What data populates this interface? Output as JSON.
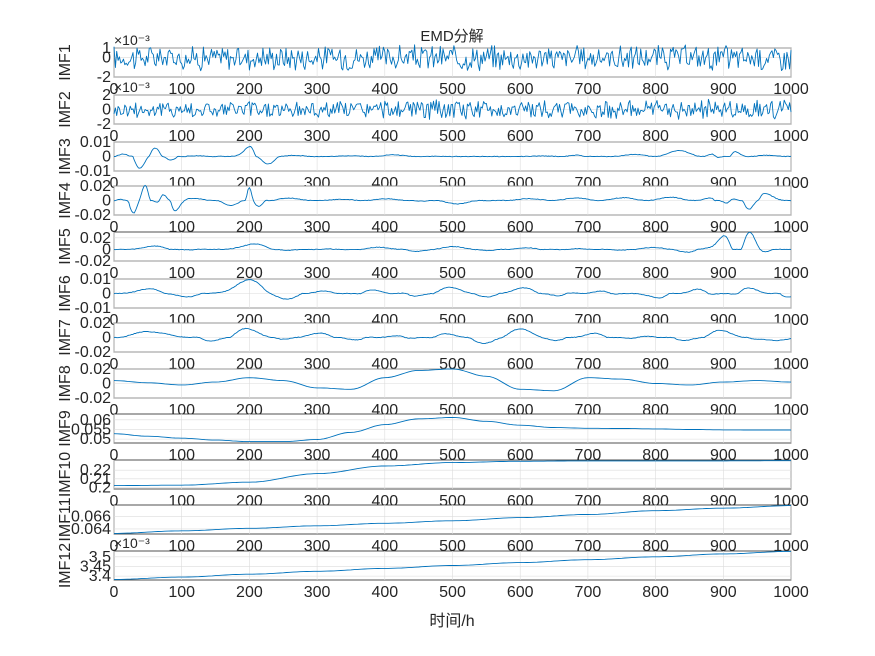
{
  "figure": {
    "title": "EMD分解",
    "xlabel": "时间/h"
  },
  "chart_data": [
    {
      "type": "line",
      "ylabel": "IMF1",
      "xlim": [
        0,
        1000
      ],
      "ylim": [
        -2,
        1
      ],
      "yticks": [
        "-2",
        "0",
        "1"
      ],
      "ytick_values": [
        -2,
        0,
        1
      ],
      "exponent": "×10⁻³",
      "xticks": [
        0,
        100,
        200,
        300,
        400,
        500,
        600,
        700,
        800,
        900,
        1000
      ],
      "x": [
        0,
        50,
        100,
        150,
        200,
        250,
        300,
        350,
        400,
        450,
        500,
        550,
        600,
        650,
        700,
        750,
        800,
        850,
        900,
        950,
        1000
      ],
      "y": [
        0.3,
        -0.8,
        0.9,
        -1.2,
        1.0,
        -0.7,
        0.8,
        -1.5,
        1.1,
        -0.9,
        0.7,
        -1.1,
        0.9,
        -0.6,
        1.0,
        -1.3,
        0.8,
        -0.9,
        1.0,
        -1.0,
        0.2
      ],
      "style": "noise"
    },
    {
      "type": "line",
      "ylabel": "IMF2",
      "xlim": [
        0,
        1000
      ],
      "ylim": [
        -2,
        2
      ],
      "yticks": [
        "-2",
        "0",
        "2"
      ],
      "ytick_values": [
        -2,
        0,
        2
      ],
      "exponent": "×10⁻³",
      "xticks": [
        0,
        100,
        200,
        300,
        400,
        500,
        600,
        700,
        800,
        900,
        1000
      ],
      "x": [
        0,
        50,
        100,
        150,
        200,
        250,
        300,
        350,
        400,
        450,
        500,
        550,
        600,
        650,
        700,
        750,
        800,
        850,
        900,
        950,
        1000
      ],
      "y": [
        0.5,
        -1.2,
        1.4,
        -1.3,
        1.5,
        -1.1,
        1.2,
        -1.4,
        1.3,
        -1.0,
        1.4,
        -1.2,
        1.3,
        -1.1,
        1.2,
        -1.3,
        1.4,
        -1.2,
        1.5,
        -1.4,
        0.4
      ],
      "style": "noise"
    },
    {
      "type": "line",
      "ylabel": "IMF3",
      "xlim": [
        0,
        1000
      ],
      "ylim": [
        -0.01,
        0.01
      ],
      "yticks": [
        "-0.01",
        "0",
        "0.01"
      ],
      "ytick_values": [
        -0.01,
        0,
        0.01
      ],
      "xticks": [
        0,
        100,
        200,
        300,
        400,
        500,
        600,
        700,
        800,
        900,
        1000
      ],
      "x": [
        0,
        20,
        40,
        60,
        80,
        100,
        150,
        180,
        200,
        220,
        250,
        300,
        400,
        500,
        600,
        680,
        700,
        880,
        900,
        920,
        950,
        1000
      ],
      "y": [
        0,
        0.004,
        -0.008,
        0.005,
        -0.004,
        0.001,
        0,
        0.002,
        0.006,
        -0.007,
        0.001,
        0,
        0.001,
        0,
        0,
        0.001,
        0,
        0.004,
        -0.006,
        0.005,
        0.001,
        0
      ],
      "style": "burst"
    },
    {
      "type": "line",
      "ylabel": "IMF4",
      "xlim": [
        0,
        1000
      ],
      "ylim": [
        -0.02,
        0.02
      ],
      "yticks": [
        "-0.02",
        "0",
        "0.02"
      ],
      "ytick_values": [
        -0.02,
        0,
        0.02
      ],
      "xticks": [
        0,
        100,
        200,
        300,
        400,
        500,
        600,
        700,
        800,
        900,
        1000
      ],
      "x": [
        0,
        15,
        30,
        45,
        60,
        75,
        90,
        110,
        150,
        190,
        200,
        210,
        230,
        300,
        400,
        500,
        600,
        700,
        880,
        900,
        920,
        940,
        960,
        1000
      ],
      "y": [
        0,
        0.01,
        -0.018,
        0.02,
        -0.015,
        0.017,
        -0.012,
        0.003,
        0,
        -0.015,
        0.016,
        -0.012,
        0.004,
        0.001,
        0.002,
        -0.004,
        0.002,
        0.003,
        0.004,
        -0.012,
        0.01,
        -0.014,
        0.008,
        0
      ],
      "style": "burst"
    },
    {
      "type": "line",
      "ylabel": "IMF5",
      "xlim": [
        0,
        1000
      ],
      "ylim": [
        -0.02,
        0.03
      ],
      "yticks": [
        "-0.02",
        "0",
        "0.02"
      ],
      "ytick_values": [
        -0.02,
        0,
        0.02
      ],
      "xticks": [
        0,
        100,
        200,
        300,
        400,
        500,
        600,
        700,
        800,
        900,
        1000
      ],
      "x": [
        0,
        50,
        100,
        150,
        200,
        250,
        300,
        350,
        400,
        450,
        500,
        550,
        600,
        650,
        700,
        750,
        800,
        850,
        880,
        900,
        920,
        940,
        960,
        980,
        1000
      ],
      "y": [
        0,
        0.008,
        -0.003,
        0.004,
        0.01,
        -0.003,
        0.004,
        -0.002,
        0.005,
        -0.003,
        0.004,
        -0.002,
        0.005,
        -0.003,
        0.004,
        -0.002,
        0.003,
        -0.004,
        0.01,
        0.026,
        -0.01,
        0.028,
        -0.006,
        0.002,
        0
      ],
      "style": "wave"
    },
    {
      "type": "line",
      "ylabel": "IMF6",
      "xlim": [
        0,
        1000
      ],
      "ylim": [
        -0.01,
        0.01
      ],
      "yticks": [
        "-0.01",
        "0",
        "0.01"
      ],
      "ytick_values": [
        -0.01,
        0,
        0.01
      ],
      "xticks": [
        0,
        100,
        200,
        300,
        400,
        500,
        600,
        700,
        800,
        900,
        1000
      ],
      "x": [
        0,
        50,
        100,
        150,
        200,
        250,
        300,
        350,
        400,
        450,
        500,
        550,
        600,
        650,
        700,
        750,
        800,
        850,
        900,
        950,
        1000
      ],
      "y": [
        0,
        0.003,
        -0.003,
        0.002,
        0.008,
        -0.004,
        0.003,
        -0.002,
        0.008,
        -0.003,
        0.004,
        -0.002,
        0.004,
        -0.003,
        0.007,
        -0.002,
        -0.004,
        0.008,
        -0.006,
        0.009,
        -0.003
      ],
      "style": "wave"
    },
    {
      "type": "line",
      "ylabel": "IMF7",
      "xlim": [
        0,
        1000
      ],
      "ylim": [
        -0.02,
        0.02
      ],
      "yticks": [
        "-0.02",
        "0",
        "0.02"
      ],
      "ytick_values": [
        -0.02,
        0,
        0.02
      ],
      "xticks": [
        0,
        100,
        200,
        300,
        400,
        500,
        600,
        700,
        800,
        900,
        1000
      ],
      "x": [
        0,
        50,
        100,
        150,
        200,
        250,
        300,
        350,
        400,
        450,
        500,
        550,
        600,
        650,
        700,
        750,
        800,
        850,
        900,
        950,
        1000
      ],
      "y": [
        0,
        0.007,
        0.01,
        -0.008,
        0.012,
        -0.002,
        0.006,
        -0.006,
        0.01,
        -0.005,
        0.008,
        -0.008,
        0.01,
        -0.004,
        0.009,
        -0.006,
        0.008,
        -0.007,
        0.01,
        -0.002,
        -0.008
      ],
      "style": "wave"
    },
    {
      "type": "line",
      "ylabel": "IMF8",
      "xlim": [
        0,
        1000
      ],
      "ylim": [
        -0.02,
        0.02
      ],
      "yticks": [
        "-0.02",
        "0",
        "0.02"
      ],
      "ytick_values": [
        -0.02,
        0,
        0.02
      ],
      "xticks": [
        0,
        100,
        200,
        300,
        400,
        500,
        600,
        700,
        800,
        900,
        1000
      ],
      "x": [
        0,
        50,
        100,
        150,
        200,
        250,
        300,
        350,
        400,
        450,
        500,
        550,
        600,
        650,
        700,
        750,
        800,
        850,
        900,
        950,
        1000
      ],
      "y": [
        0.004,
        0.001,
        -0.002,
        0.002,
        0.008,
        0.004,
        -0.006,
        -0.008,
        0.008,
        0.018,
        0.02,
        0.01,
        -0.008,
        -0.01,
        0.008,
        0.006,
        0,
        -0.002,
        0.002,
        0.004,
        0.002
      ],
      "style": "smooth"
    },
    {
      "type": "line",
      "ylabel": "IMF9",
      "xlim": [
        0,
        1000
      ],
      "ylim": [
        0.048,
        0.063
      ],
      "yticks": [
        "0.05",
        "0.055",
        "0.06"
      ],
      "ytick_values": [
        0.05,
        0.055,
        0.06
      ],
      "xticks": [
        0,
        100,
        200,
        300,
        400,
        500,
        600,
        700,
        800,
        900,
        1000
      ],
      "x": [
        0,
        50,
        100,
        150,
        200,
        250,
        300,
        350,
        400,
        450,
        500,
        550,
        600,
        650,
        700,
        750,
        800,
        850,
        900,
        950,
        1000
      ],
      "y": [
        0.0528,
        0.0515,
        0.0505,
        0.0495,
        0.0487,
        0.0487,
        0.0498,
        0.0535,
        0.0575,
        0.0605,
        0.0612,
        0.0592,
        0.0572,
        0.056,
        0.0556,
        0.0555,
        0.0553,
        0.055,
        0.0548,
        0.0547,
        0.0547
      ],
      "style": "smooth"
    },
    {
      "type": "line",
      "ylabel": "IMF10",
      "xlim": [
        0,
        1000
      ],
      "ylim": [
        0.198,
        0.232
      ],
      "yticks": [
        "0.2",
        "0.21",
        "0.22"
      ],
      "ytick_values": [
        0.2,
        0.21,
        0.22
      ],
      "xticks": [
        0,
        100,
        200,
        300,
        400,
        500,
        600,
        700,
        800,
        900,
        1000
      ],
      "x": [
        0,
        100,
        200,
        300,
        400,
        500,
        600,
        700,
        800,
        900,
        1000
      ],
      "y": [
        0.202,
        0.2025,
        0.206,
        0.216,
        0.225,
        0.229,
        0.2305,
        0.231,
        0.231,
        0.231,
        0.2312
      ],
      "style": "smooth"
    },
    {
      "type": "line",
      "ylabel": "IMF11",
      "xlim": [
        0,
        1000
      ],
      "ylim": [
        0.0632,
        0.0678
      ],
      "yticks": [
        "0.064",
        "0.066"
      ],
      "ytick_values": [
        0.064,
        0.066
      ],
      "xticks": [
        0,
        100,
        200,
        300,
        400,
        500,
        600,
        700,
        800,
        900,
        1000
      ],
      "x": [
        0,
        100,
        200,
        300,
        400,
        500,
        600,
        700,
        800,
        900,
        1000
      ],
      "y": [
        0.0633,
        0.0637,
        0.0641,
        0.0645,
        0.0649,
        0.0653,
        0.0658,
        0.0663,
        0.0669,
        0.0673,
        0.0677
      ],
      "style": "smooth"
    },
    {
      "type": "line",
      "ylabel": "IMF12",
      "xlim": [
        0,
        1000
      ],
      "ylim": [
        3.38,
        3.53
      ],
      "yticks": [
        "3.4",
        "3.45",
        "3.5"
      ],
      "ytick_values": [
        3.4,
        3.45,
        3.5
      ],
      "exponent": "×10⁻³",
      "xticks": [
        0,
        100,
        200,
        300,
        400,
        500,
        600,
        700,
        800,
        900,
        1000
      ],
      "x": [
        0,
        100,
        200,
        300,
        400,
        500,
        600,
        700,
        800,
        900,
        1000
      ],
      "y": [
        3.383,
        3.395,
        3.41,
        3.425,
        3.44,
        3.455,
        3.47,
        3.485,
        3.5,
        3.515,
        3.528
      ],
      "style": "smooth"
    }
  ]
}
